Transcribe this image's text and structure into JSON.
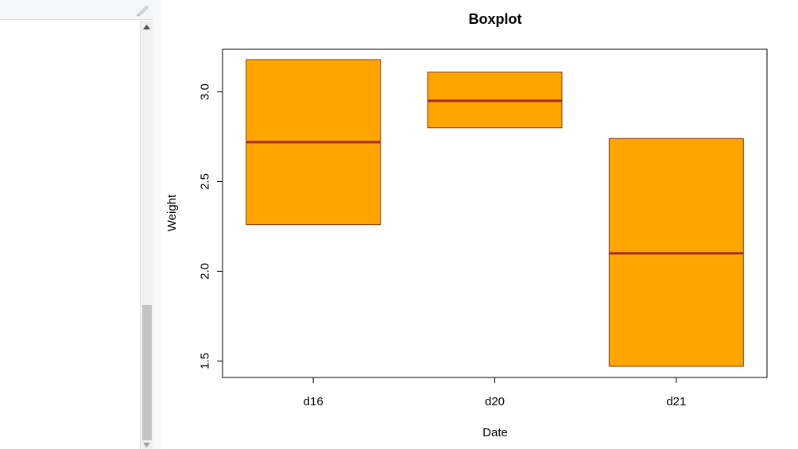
{
  "chart_data": {
    "type": "boxplot",
    "title": "Boxplot",
    "xlabel": "Date",
    "ylabel": "Weight",
    "categories": [
      "d16",
      "d20",
      "d21"
    ],
    "boxes": [
      {
        "category": "d16",
        "q1": 2.26,
        "median": 2.72,
        "q3": 3.18
      },
      {
        "category": "d20",
        "q1": 2.8,
        "median": 2.95,
        "q3": 3.11
      },
      {
        "category": "d21",
        "q1": 1.47,
        "median": 2.1,
        "q3": 2.74
      }
    ],
    "yticks": [
      1.5,
      2.0,
      2.5,
      3.0
    ],
    "ytick_labels": [
      "1.5",
      "2.0",
      "2.5",
      "3.0"
    ],
    "ylim": [
      1.4,
      3.25
    ],
    "grid": false,
    "colors": {
      "box_fill": "#FFA500",
      "box_border": "#8B3A0F",
      "median": "#A52A2A"
    }
  }
}
